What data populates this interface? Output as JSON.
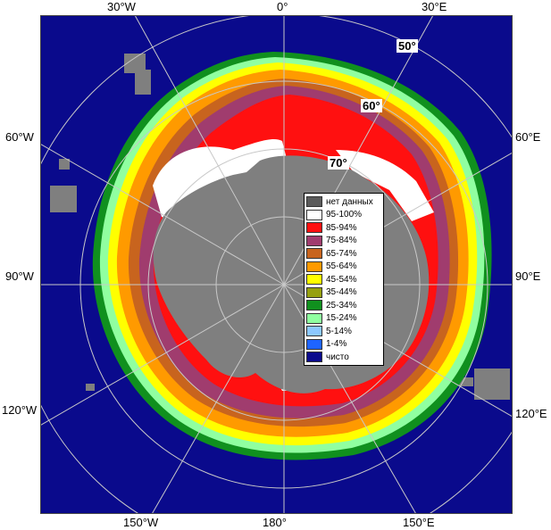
{
  "map": {
    "colors": {
      "open_water": "#0a0a8c",
      "land": "#7f7f7f",
      "ice_95_100": "#ffffff",
      "ice_85_94": "#ff1010",
      "ice_75_84": "#a03c6e",
      "ice_65_74": "#c8641e",
      "ice_55_64": "#ff9a00",
      "ice_45_54": "#ffff00",
      "ice_35_44": "#96a010",
      "ice_25_34": "#10901e",
      "ice_15_24": "#90ffa0",
      "ice_5_14": "#8cc8ff",
      "ice_1_4": "#1e64ff",
      "grid": "#c8c8c8"
    }
  },
  "longitude_labels": {
    "top": [
      "30°W",
      "0°",
      "30°E"
    ],
    "left": [
      "60°W",
      "90°W",
      "120°W"
    ],
    "right": [
      "60°E",
      "90°E",
      "120°E"
    ],
    "bottom": [
      "150°W",
      "180°",
      "150°E"
    ]
  },
  "latitude_labels": [
    "50°",
    "60°",
    "70°"
  ],
  "legend": {
    "items": [
      {
        "label": "нет данных",
        "color": "#5a5a5a"
      },
      {
        "label": "95-100%",
        "color": "#ffffff"
      },
      {
        "label": "85-94%",
        "color": "#ff1010"
      },
      {
        "label": "75-84%",
        "color": "#a03c6e"
      },
      {
        "label": "65-74%",
        "color": "#c8641e"
      },
      {
        "label": "55-64%",
        "color": "#ff9a00"
      },
      {
        "label": "45-54%",
        "color": "#ffff00"
      },
      {
        "label": "35-44%",
        "color": "#96a010"
      },
      {
        "label": "25-34%",
        "color": "#10901e"
      },
      {
        "label": "15-24%",
        "color": "#90ffa0"
      },
      {
        "label": "5-14%",
        "color": "#8cc8ff"
      },
      {
        "label": "1-4%",
        "color": "#1e64ff"
      },
      {
        "label": "чисто",
        "color": "#0a0a8c"
      }
    ]
  }
}
